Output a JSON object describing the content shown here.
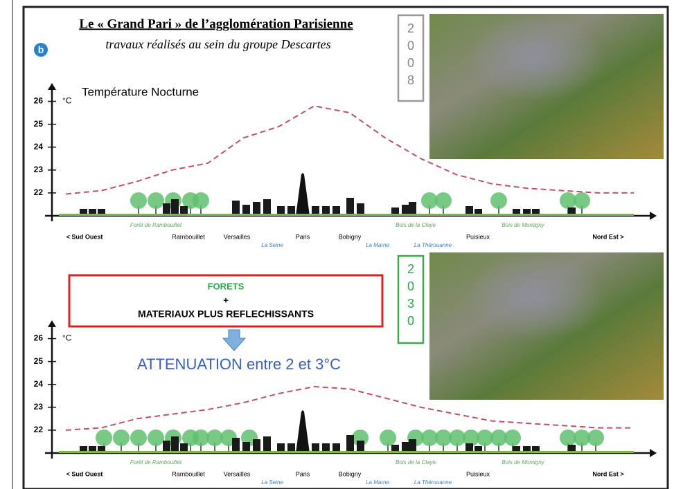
{
  "header": {
    "title": "Le « Grand Pari » de l’agglomération Parisienne",
    "subtitle": "travaux réalisés au sein du groupe Descartes",
    "badge": "b"
  },
  "years": [
    [
      "2",
      "0",
      "0",
      "8"
    ],
    [
      "2",
      "0",
      "3",
      "0"
    ]
  ],
  "callout": {
    "line1": "FORETS",
    "line2": "+",
    "line3": "MATERIAUX PLUS REFLECHISSANTS"
  },
  "arrow_text": "ATTENUATION entre 2 et 3°C",
  "chart_data": [
    {
      "type": "line",
      "title": "Température Nocturne",
      "y_unit": "°C",
      "ylim": [
        21,
        26.5
      ],
      "yticks": [
        22,
        23,
        24,
        25,
        26
      ],
      "categories": [
        null,
        null,
        null,
        null,
        null,
        null,
        null,
        null,
        null,
        null,
        null,
        null,
        null,
        null,
        null,
        null,
        null
      ],
      "color": "#c0506a",
      "line_style": "dashed",
      "values": [
        21.95,
        22.1,
        22.5,
        23.0,
        23.3,
        24.4,
        24.9,
        25.8,
        25.5,
        24.4,
        23.5,
        22.8,
        22.4,
        22.2,
        22.1,
        22.0,
        22.0
      ],
      "locations": [
        "< Sud Ouest",
        "Rambouillet",
        "Versailles",
        "Paris",
        "Bobigny",
        "Puisieux",
        "Nord Est >"
      ],
      "features": [
        "Forêt de Rambouillet",
        "La Seine",
        "La Marne",
        "Bois de la Claye",
        "La Thérouanne",
        "Bois de Montigny"
      ]
    },
    {
      "type": "line",
      "y_unit": "°C",
      "ylim": [
        21,
        26.5
      ],
      "yticks": [
        22,
        23,
        24,
        25,
        26
      ],
      "categories": [
        null,
        null,
        null,
        null,
        null,
        null,
        null,
        null,
        null,
        null,
        null,
        null,
        null,
        null,
        null,
        null,
        null
      ],
      "color": "#c0506a",
      "line_style": "dashed",
      "values": [
        22.0,
        22.1,
        22.5,
        22.7,
        22.9,
        23.2,
        23.6,
        23.9,
        23.8,
        23.4,
        23.0,
        22.7,
        22.4,
        22.3,
        22.2,
        22.1,
        22.1
      ],
      "locations": [
        "< Sud Ouest",
        "Rambouillet",
        "Versailles",
        "Paris",
        "Bobigny",
        "Puisieux",
        "Nord Est >"
      ],
      "features": [
        "Forêt de Rambouillet",
        "La Seine",
        "La Marne",
        "Bois de la Claye",
        "La Thérouanne",
        "Bois de Montigny"
      ]
    }
  ]
}
